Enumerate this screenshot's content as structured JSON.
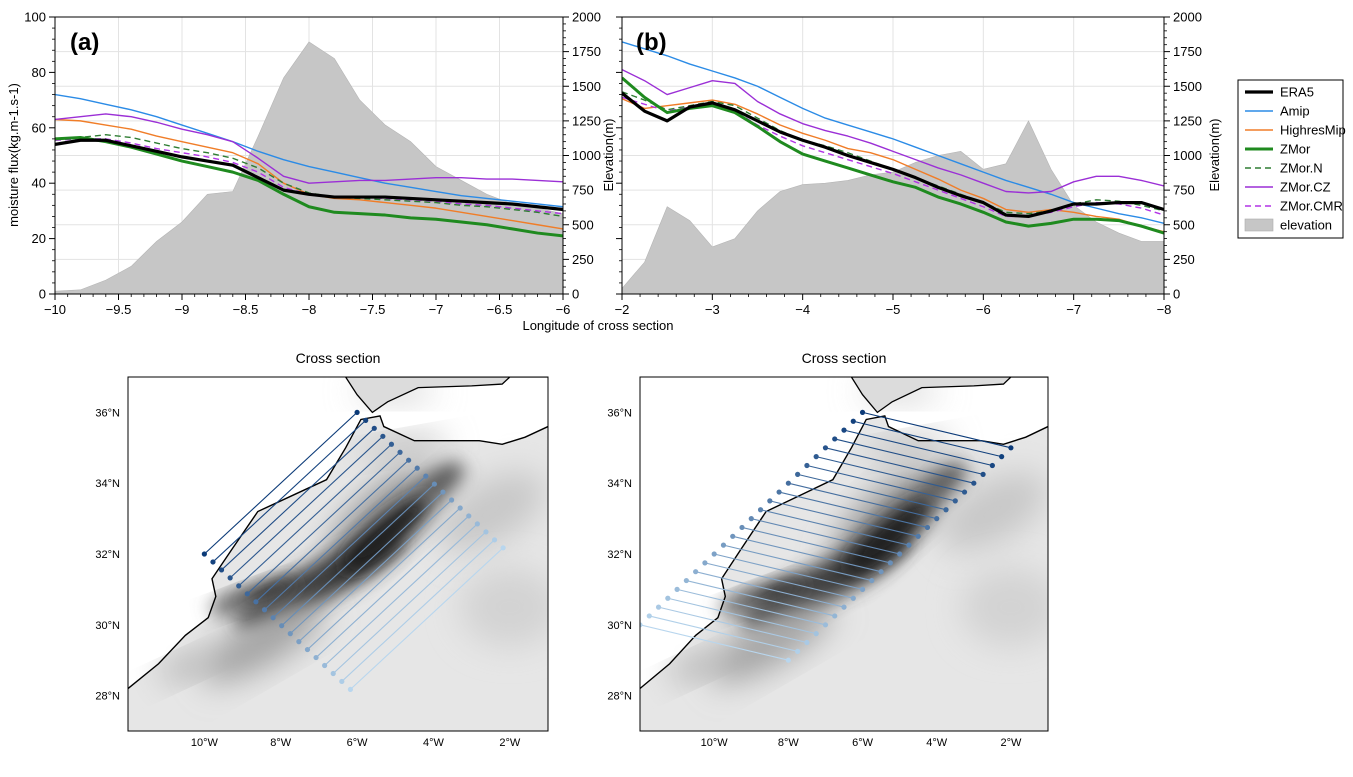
{
  "chart_data": [
    {
      "type": "line",
      "panel": "(a)",
      "xlabel": "Longitude of cross section",
      "ylabel": "moisture flux(kg.m-1.s-1)",
      "ylabel_right": "Elevation(m)",
      "xlim": [
        -10,
        -6
      ],
      "ylim": [
        0,
        100
      ],
      "ylim_right": [
        0,
        2000
      ],
      "xticks": [
        -10,
        -9.5,
        -9,
        -8.5,
        -8,
        -7.5,
        -7,
        -6.5,
        -6
      ],
      "xtick_labels": [
        "−10",
        "−9.5",
        "−9",
        "−8.5",
        "−8",
        "−7.5",
        "−7",
        "−6.5",
        "−6"
      ],
      "yticks": [
        0,
        20,
        40,
        60,
        80,
        100
      ],
      "ytick_labels": [
        "0",
        "20",
        "40",
        "60",
        "80",
        "100"
      ],
      "yticks_right": [
        0,
        250,
        500,
        750,
        1000,
        1250,
        1500,
        1750,
        2000
      ],
      "ytick_right_labels": [
        "0",
        "250",
        "500",
        "750",
        "1000",
        "1250",
        "1500",
        "1750",
        "2000"
      ],
      "grid": true,
      "elevation": {
        "name": "elevation",
        "x": [
          -10,
          -9.8,
          -9.6,
          -9.4,
          -9.2,
          -9.0,
          -8.8,
          -8.6,
          -8.4,
          -8.2,
          -8.0,
          -7.8,
          -7.6,
          -7.4,
          -7.2,
          -7.0,
          -6.8,
          -6.6,
          -6.4,
          -6.2,
          -6.0
        ],
        "values": [
          20,
          30,
          100,
          200,
          380,
          520,
          720,
          740,
          1140,
          1560,
          1820,
          1700,
          1400,
          1220,
          1100,
          920,
          820,
          720,
          650,
          620,
          580
        ]
      },
      "series": [
        {
          "name": "ERA5",
          "x": [
            -10,
            -9.8,
            -9.6,
            -9.4,
            -9.2,
            -9.0,
            -8.8,
            -8.6,
            -8.4,
            -8.2,
            -8.0,
            -7.8,
            -7.6,
            -7.4,
            -7.2,
            -7.0,
            -6.8,
            -6.6,
            -6.4,
            -6.2,
            -6.0
          ],
          "values": [
            54,
            55.5,
            55.5,
            53.5,
            51.5,
            49.5,
            48,
            46.5,
            42,
            37.5,
            36,
            35,
            35,
            35,
            34.5,
            34,
            33.5,
            33,
            32.5,
            31.5,
            30.5
          ]
        },
        {
          "name": "Amip",
          "x": [
            -10,
            -9.8,
            -9.6,
            -9.4,
            -9.2,
            -9.0,
            -8.8,
            -8.6,
            -8.4,
            -8.2,
            -8.0,
            -7.8,
            -7.6,
            -7.4,
            -7.2,
            -7.0,
            -6.8,
            -6.6,
            -6.4,
            -6.2,
            -6.0
          ],
          "values": [
            72,
            70.5,
            68.5,
            66.5,
            64,
            61,
            58,
            55,
            51.5,
            48.5,
            46,
            44,
            42,
            40,
            38.5,
            37,
            35.5,
            34.5,
            33.5,
            32.5,
            31.5
          ]
        },
        {
          "name": "HighresMip",
          "x": [
            -10,
            -9.8,
            -9.6,
            -9.4,
            -9.2,
            -9.0,
            -8.8,
            -8.6,
            -8.4,
            -8.2,
            -8.0,
            -7.8,
            -7.6,
            -7.4,
            -7.2,
            -7.0,
            -6.8,
            -6.6,
            -6.4,
            -6.2,
            -6.0
          ],
          "values": [
            63,
            62.5,
            61,
            59.5,
            57,
            55,
            53,
            51,
            47,
            40,
            36,
            34.5,
            34,
            33,
            32,
            31,
            29.5,
            28,
            26.5,
            25,
            23.5
          ]
        },
        {
          "name": "ZMor",
          "x": [
            -10,
            -9.8,
            -9.6,
            -9.4,
            -9.2,
            -9.0,
            -8.8,
            -8.6,
            -8.4,
            -8.2,
            -8.0,
            -7.8,
            -7.6,
            -7.4,
            -7.2,
            -7.0,
            -6.8,
            -6.6,
            -6.4,
            -6.2,
            -6.0
          ],
          "values": [
            56,
            56.5,
            55,
            53,
            50.5,
            48,
            46,
            44,
            41,
            36,
            31.5,
            29.5,
            29,
            28.5,
            27.5,
            27,
            26,
            25,
            23.5,
            22,
            21
          ]
        },
        {
          "name": "ZMor.N",
          "x": [
            -10,
            -9.8,
            -9.6,
            -9.4,
            -9.2,
            -9.0,
            -8.8,
            -8.6,
            -8.4,
            -8.2,
            -8.0,
            -7.8,
            -7.6,
            -7.4,
            -7.2,
            -7.0,
            -6.8,
            -6.6,
            -6.4,
            -6.2,
            -6.0
          ],
          "values": [
            56,
            56.5,
            57.5,
            56.5,
            54.5,
            52.5,
            51,
            49,
            45.5,
            40,
            36.5,
            35,
            34.5,
            34,
            33.5,
            33,
            32,
            31.5,
            30.5,
            29.5,
            28
          ]
        },
        {
          "name": "ZMor.CZ",
          "x": [
            -10,
            -9.8,
            -9.6,
            -9.4,
            -9.2,
            -9.0,
            -8.8,
            -8.6,
            -8.4,
            -8.2,
            -8.0,
            -7.8,
            -7.6,
            -7.4,
            -7.2,
            -7.0,
            -6.8,
            -6.6,
            -6.4,
            -6.2,
            -6.0
          ],
          "values": [
            63,
            64,
            65,
            64,
            62,
            59.5,
            57.5,
            55,
            49,
            42.5,
            40,
            40.5,
            41,
            41,
            41.5,
            42,
            42,
            41.5,
            41.5,
            41,
            40.5
          ]
        },
        {
          "name": "ZMor.CMR",
          "x": [
            -10,
            -9.8,
            -9.6,
            -9.4,
            -9.2,
            -9.0,
            -8.8,
            -8.6,
            -8.4,
            -8.2,
            -8.0,
            -7.8,
            -7.6,
            -7.4,
            -7.2,
            -7.0,
            -6.8,
            -6.6,
            -6.4,
            -6.2,
            -6.0
          ],
          "values": [
            55.5,
            56,
            56,
            54.5,
            52.5,
            51,
            49.5,
            47.5,
            44,
            38.5,
            36,
            35,
            35,
            34.5,
            34,
            33.5,
            32.5,
            32,
            31,
            30,
            29
          ]
        }
      ]
    },
    {
      "type": "line",
      "panel": "(b)",
      "ylabel_right": "Elevation(m)",
      "xlim": [
        -2,
        -8
      ],
      "ylim": [
        0,
        100
      ],
      "ylim_right": [
        0,
        2000
      ],
      "xticks": [
        -2,
        -3,
        -4,
        -5,
        -6,
        -7,
        -8
      ],
      "xtick_labels": [
        "−2",
        "−3",
        "−4",
        "−5",
        "−6",
        "−7",
        "−8"
      ],
      "yticks_right": [
        0,
        250,
        500,
        750,
        1000,
        1250,
        1500,
        1750,
        2000
      ],
      "ytick_right_labels": [
        "0",
        "250",
        "500",
        "750",
        "1000",
        "1250",
        "1500",
        "1750",
        "2000"
      ],
      "grid": true,
      "elevation": {
        "name": "elevation",
        "x": [
          -2,
          -2.25,
          -2.5,
          -2.75,
          -3,
          -3.25,
          -3.5,
          -3.75,
          -4,
          -4.25,
          -4.5,
          -4.75,
          -5,
          -5.25,
          -5.5,
          -5.75,
          -6,
          -6.25,
          -6.5,
          -6.75,
          -7,
          -7.25,
          -7.5,
          -7.75,
          -8
        ],
        "values": [
          40,
          230,
          630,
          530,
          340,
          400,
          600,
          740,
          790,
          800,
          820,
          860,
          880,
          950,
          1000,
          1030,
          900,
          940,
          1250,
          900,
          640,
          520,
          440,
          380,
          380
        ]
      },
      "series": [
        {
          "name": "ERA5",
          "x": [
            -2,
            -2.25,
            -2.5,
            -2.75,
            -3,
            -3.25,
            -3.5,
            -3.75,
            -4,
            -4.25,
            -4.5,
            -4.75,
            -5,
            -5.25,
            -5.5,
            -5.75,
            -6,
            -6.25,
            -6.5,
            -6.75,
            -7,
            -7.25,
            -7.5,
            -7.75,
            -8
          ],
          "values": [
            72.5,
            66,
            62.5,
            67.5,
            69,
            66.5,
            62.5,
            58.5,
            55.5,
            53,
            50,
            47.5,
            45,
            42,
            38.5,
            35.5,
            33,
            28.5,
            28,
            30,
            32.5,
            32.5,
            33,
            33,
            30.5
          ]
        },
        {
          "name": "Amip",
          "x": [
            -2,
            -2.25,
            -2.5,
            -2.75,
            -3,
            -3.25,
            -3.5,
            -3.75,
            -4,
            -4.25,
            -4.5,
            -4.75,
            -5,
            -5.25,
            -5.5,
            -5.75,
            -6,
            -6.25,
            -6.5,
            -6.75,
            -7,
            -7.25,
            -7.5,
            -7.75,
            -8
          ],
          "values": [
            91,
            88.5,
            86,
            83,
            80.5,
            78,
            75,
            71,
            67,
            63.5,
            61,
            58.5,
            56,
            53,
            50,
            47,
            44,
            41,
            38.5,
            36,
            33,
            31,
            29,
            27.5,
            25.5
          ]
        },
        {
          "name": "HighresMip",
          "x": [
            -2,
            -2.25,
            -2.5,
            -2.75,
            -3,
            -3.25,
            -3.5,
            -3.75,
            -4,
            -4.25,
            -4.5,
            -4.75,
            -5,
            -5.25,
            -5.5,
            -5.75,
            -6,
            -6.25,
            -6.5,
            -6.75,
            -7,
            -7.25,
            -7.5,
            -7.75,
            -8
          ],
          "values": [
            70.5,
            67,
            68,
            69,
            70,
            68.5,
            65,
            61,
            58,
            55.5,
            52.5,
            51,
            48.5,
            45,
            41.5,
            37.5,
            34.5,
            30.5,
            29.5,
            30.5,
            29.5,
            28,
            27,
            24.5,
            22.5
          ]
        },
        {
          "name": "ZMor",
          "x": [
            -2,
            -2.25,
            -2.5,
            -2.75,
            -3,
            -3.25,
            -3.5,
            -3.75,
            -4,
            -4.25,
            -4.5,
            -4.75,
            -5,
            -5.25,
            -5.5,
            -5.75,
            -6,
            -6.25,
            -6.5,
            -6.75,
            -7,
            -7.25,
            -7.5,
            -7.75,
            -8
          ],
          "values": [
            78,
            71,
            65.5,
            67,
            68,
            65.5,
            60.5,
            55,
            50.5,
            48,
            45.5,
            43,
            40.5,
            38.5,
            35,
            32.5,
            29.5,
            26,
            24.5,
            25.5,
            27,
            27,
            26.5,
            24.5,
            22
          ]
        },
        {
          "name": "ZMor.N",
          "x": [
            -2,
            -2.25,
            -2.5,
            -2.75,
            -3,
            -3.25,
            -3.5,
            -3.75,
            -4,
            -4.25,
            -4.5,
            -4.75,
            -5,
            -5.25,
            -5.5,
            -5.75,
            -6,
            -6.25,
            -6.5,
            -6.75,
            -7,
            -7.25,
            -7.5,
            -7.75,
            -8
          ],
          "values": [
            73,
            70,
            66.5,
            68,
            69.5,
            68,
            63.5,
            59,
            55.5,
            53.5,
            51,
            48,
            45,
            42,
            39,
            36,
            33,
            29.5,
            29,
            30,
            32.5,
            34,
            33.5,
            32,
            30
          ]
        },
        {
          "name": "ZMor.CZ",
          "x": [
            -2,
            -2.25,
            -2.5,
            -2.75,
            -3,
            -3.25,
            -3.5,
            -3.75,
            -4,
            -4.25,
            -4.5,
            -4.75,
            -5,
            -5.25,
            -5.5,
            -5.75,
            -6,
            -6.25,
            -6.5,
            -6.75,
            -7,
            -7.25,
            -7.5,
            -7.75,
            -8
          ],
          "values": [
            81,
            77,
            72,
            74.5,
            77,
            76,
            69.5,
            65,
            61.5,
            59,
            57,
            54.5,
            51.5,
            48.5,
            45.5,
            43,
            40,
            37,
            36.5,
            37,
            40.5,
            42.5,
            42.5,
            41,
            39
          ]
        },
        {
          "name": "ZMor.CMR",
          "x": [
            -2,
            -2.25,
            -2.5,
            -2.75,
            -3,
            -3.25,
            -3.5,
            -3.75,
            -4,
            -4.25,
            -4.5,
            -4.75,
            -5,
            -5.25,
            -5.5,
            -5.75,
            -6,
            -6.25,
            -6.5,
            -6.75,
            -7,
            -7.25,
            -7.5,
            -7.75,
            -8
          ],
          "values": [
            71,
            68.5,
            66,
            67.5,
            69,
            66,
            61,
            57,
            53.5,
            51,
            48.5,
            46,
            43.5,
            40.5,
            37.5,
            34.5,
            31.5,
            28,
            28,
            29.5,
            31.5,
            33,
            32.5,
            31,
            28.5
          ]
        }
      ]
    },
    {
      "type": "map",
      "title": "Cross section",
      "lat_ticks": [
        "36°N",
        "34°N",
        "32°N",
        "30°N",
        "28°N"
      ],
      "lon_ticks": [
        "10°W",
        "8°W",
        "6°W",
        "4°W",
        "2°W"
      ],
      "lon_range": [
        -12,
        -1
      ],
      "lat_range": [
        27,
        37
      ],
      "sections": {
        "count": 18,
        "start_from": [
          -10,
          32
        ],
        "start_to": [
          -6,
          36
        ],
        "step": [
          0.225,
          -0.225
        ]
      }
    },
    {
      "type": "map",
      "title": "Cross section",
      "lat_ticks": [
        "36°N",
        "34°N",
        "32°N",
        "30°N",
        "28°N"
      ],
      "lon_ticks": [
        "10°W",
        "8°W",
        "6°W",
        "4°W",
        "2°W"
      ],
      "lon_range": [
        -12,
        -1
      ],
      "lat_range": [
        27,
        37
      ],
      "sections": {
        "count": 25,
        "start_from": [
          -6,
          36
        ],
        "start_to": [
          -2,
          35
        ],
        "step": [
          -0.25,
          -0.25
        ]
      }
    }
  ],
  "legend": {
    "entries": [
      "ERA5",
      "Amip",
      "HighresMip",
      "ZMor",
      "ZMor.N",
      "ZMor.CZ",
      "ZMor.CMR",
      "elevation"
    ]
  },
  "colors": {
    "ERA5": "#000000",
    "Amip": "#2b8be6",
    "HighresMip": "#f07d28",
    "ZMor": "#1f8a1f",
    "ZMor.N": "#2e7d32",
    "ZMor.CZ": "#9b2fd6",
    "ZMor.CMR": "#b233e6",
    "elevation": "#c6c6c6",
    "section_dark": "#0b3a78",
    "section_light": "#b8d6ee"
  }
}
